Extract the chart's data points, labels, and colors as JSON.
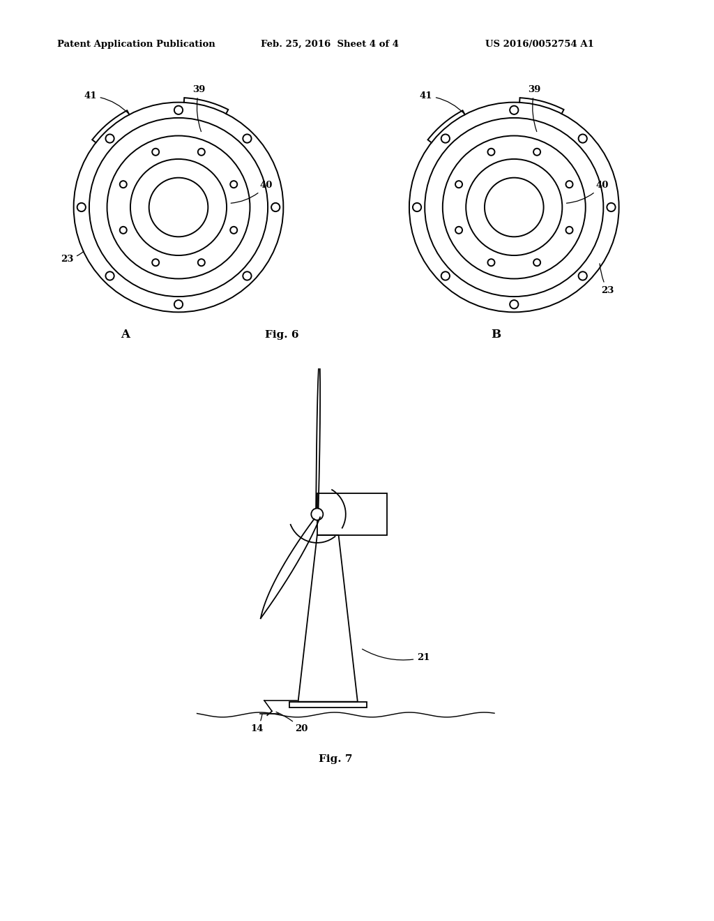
{
  "background_color": "#ffffff",
  "header_left": "Patent Application Publication",
  "header_center": "Feb. 25, 2016  Sheet 4 of 4",
  "header_right": "US 2016/0052754 A1",
  "fig6_label": "Fig. 6",
  "fig7_label": "Fig. 7",
  "label_A": "A",
  "label_B": "B"
}
